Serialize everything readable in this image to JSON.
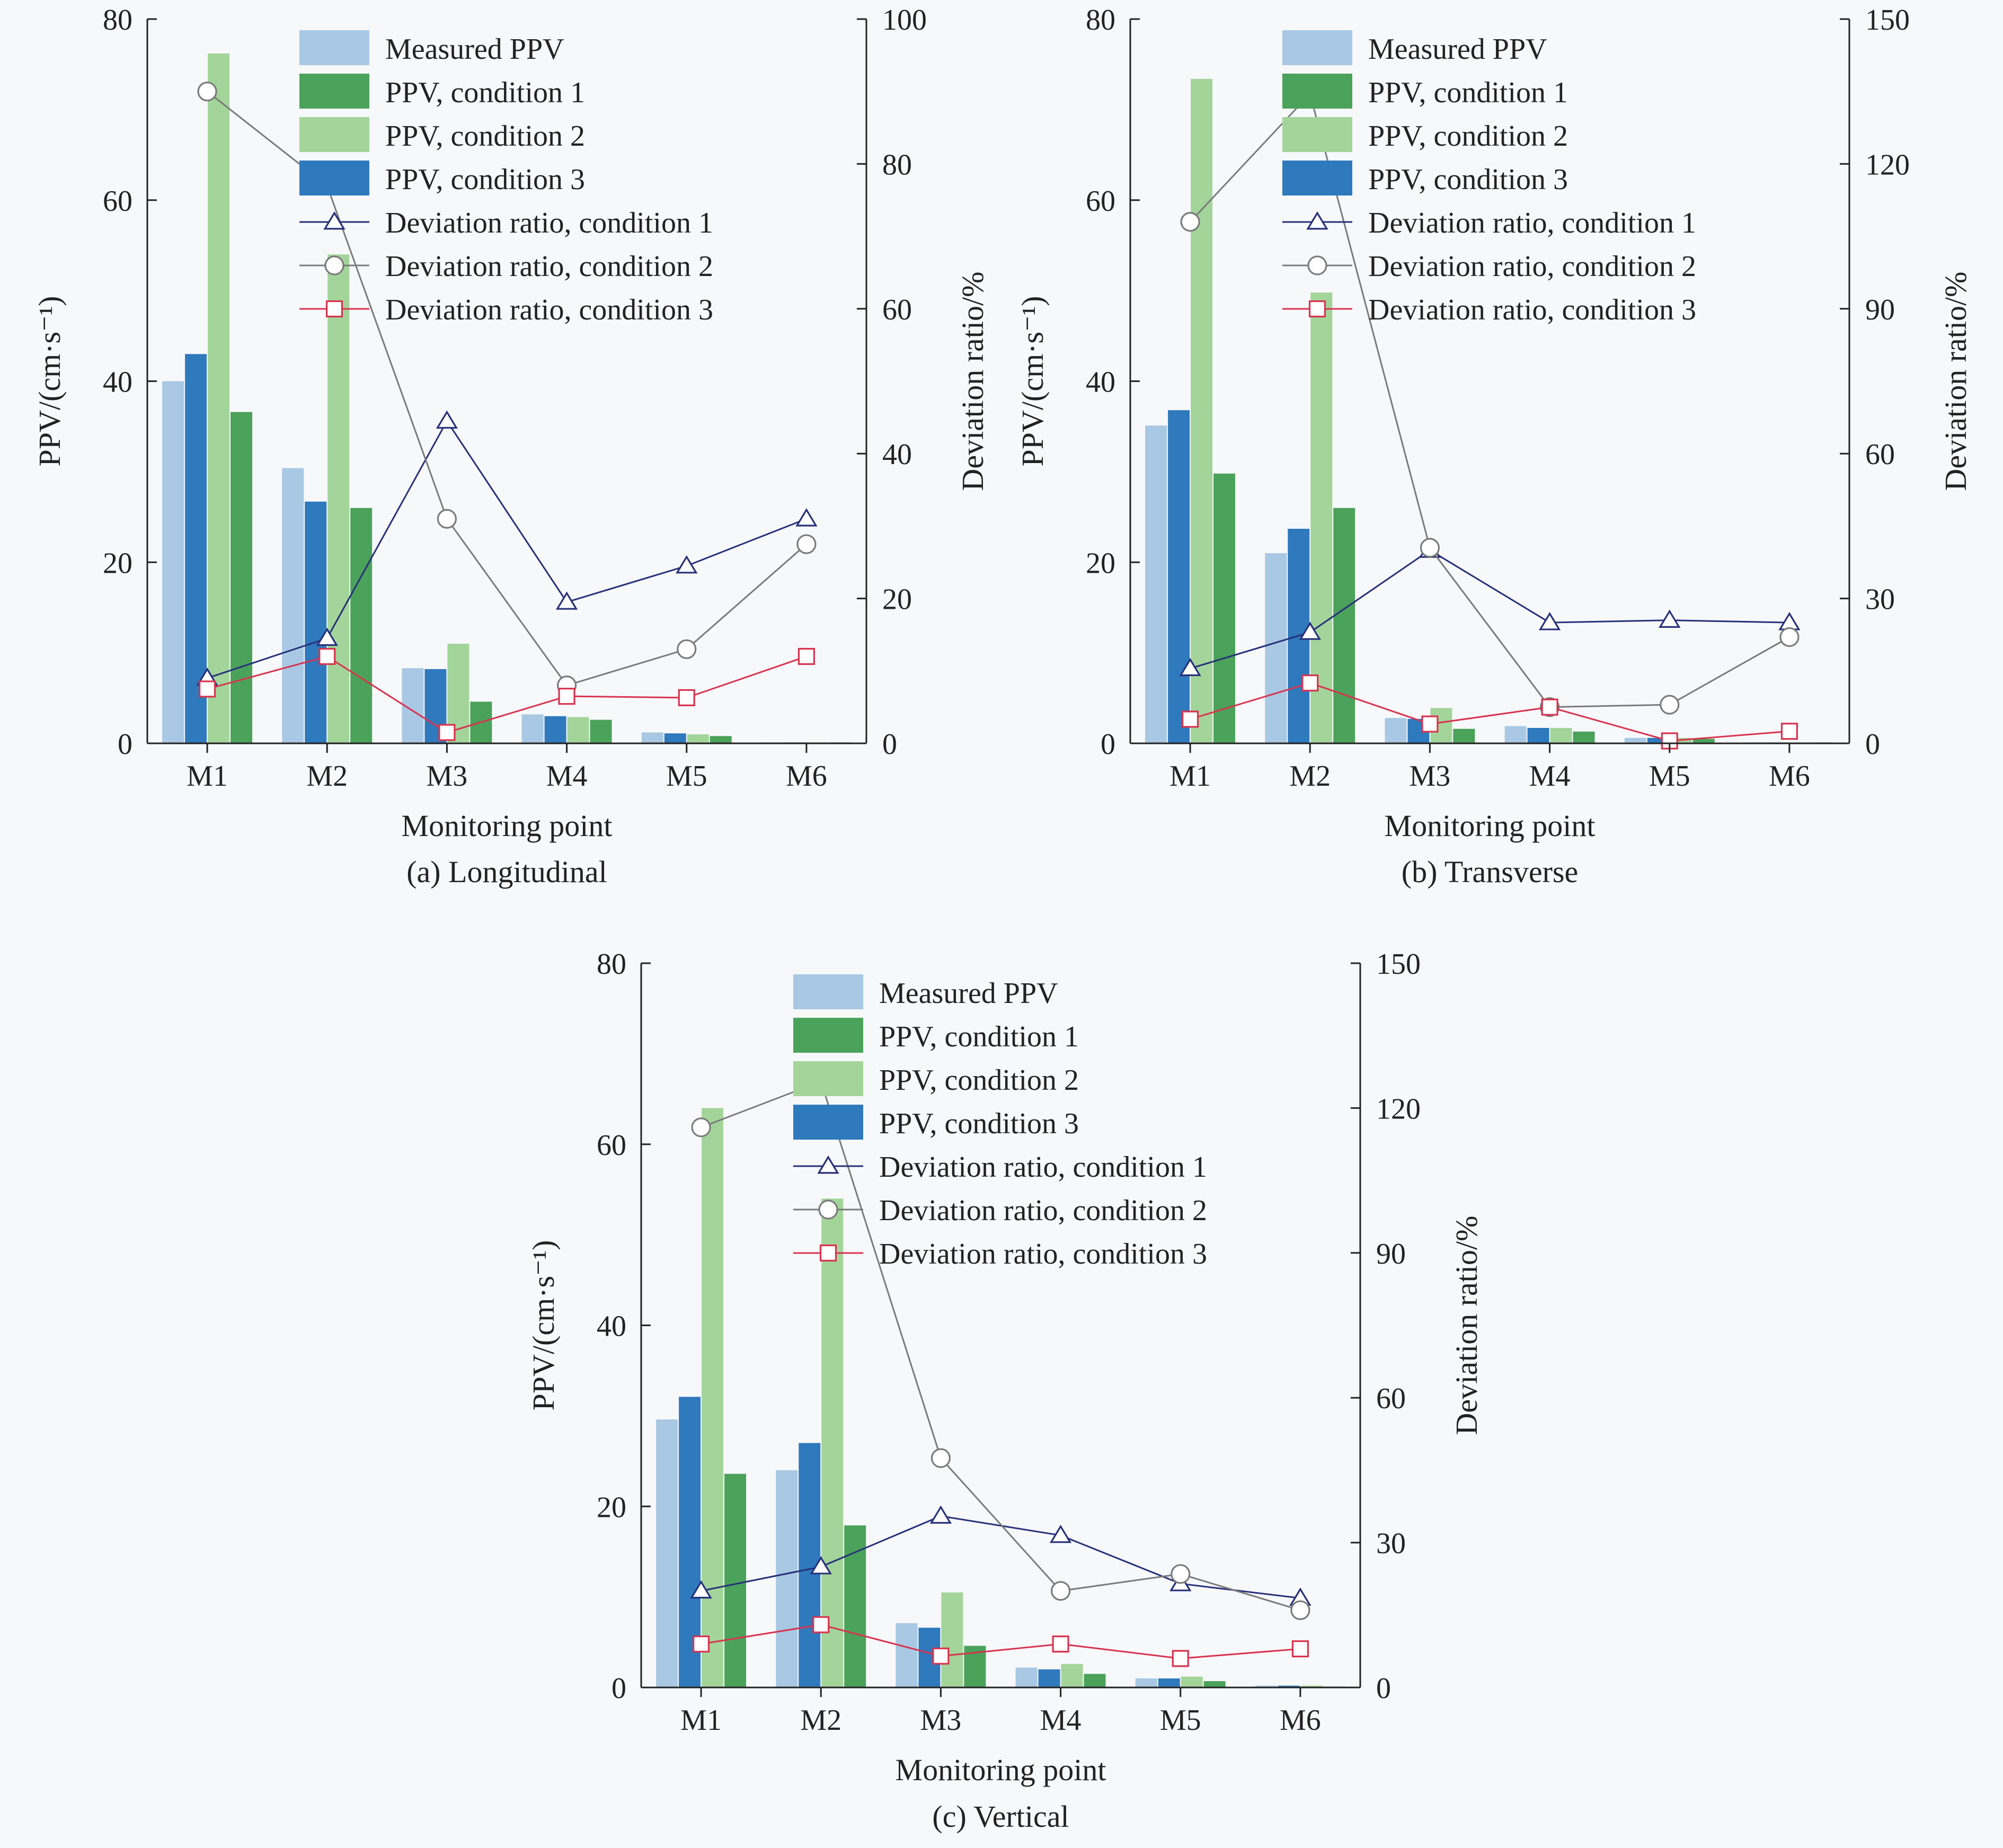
{
  "figure": {
    "colors": {
      "measured": "#a8c8e4",
      "cond1_bar": "#4ba25a",
      "cond2_bar": "#a3d49a",
      "cond3_bar": "#2f79bd",
      "dev1": "#27307a",
      "dev2": "#7a7a7a",
      "dev3": "#d8334f",
      "dev2_marker": "#8e4e8e",
      "axis": "#222222"
    }
  },
  "chart_data": [
    {
      "type": "bar+line",
      "panel_label": "(a) Longitudinal",
      "xlabel": "Monitoring point",
      "ylabel": "PPV/(cm·s⁻¹)",
      "y2label": "Deviation ratio/%",
      "categories": [
        "M1",
        "M2",
        "M3",
        "M4",
        "M5",
        "M6"
      ],
      "ylim": [
        0,
        80
      ],
      "yticks": [
        0,
        20,
        40,
        60,
        80
      ],
      "y2lim": [
        0,
        100
      ],
      "y2ticks": [
        0,
        20,
        40,
        60,
        80,
        100
      ],
      "grid": false,
      "legend_placement": "top-right",
      "bar_series": [
        {
          "name": "Measured PPV",
          "color_key": "measured",
          "values": [
            40.0,
            30.4,
            8.3,
            3.2,
            1.2,
            0.1
          ]
        },
        {
          "name": "PPV, condition 3",
          "color_key": "cond3_bar",
          "values": [
            43.0,
            26.7,
            8.2,
            3.0,
            1.1,
            0.1
          ]
        },
        {
          "name": "PPV, condition 2",
          "color_key": "cond2_bar",
          "values": [
            76.2,
            54.0,
            11.0,
            2.9,
            1.0,
            0.1
          ]
        },
        {
          "name": "PPV, condition 1",
          "color_key": "cond1_bar",
          "values": [
            36.6,
            26.0,
            4.6,
            2.6,
            0.8,
            0.1
          ]
        }
      ],
      "line_series": [
        {
          "name": "Deviation ratio, condition 1",
          "color_key": "dev1",
          "marker": "triangle",
          "values": [
            9.0,
            14.5,
            44.5,
            19.5,
            24.5,
            31.0
          ]
        },
        {
          "name": "Deviation ratio, condition 2",
          "color_key": "dev2",
          "marker": "circle",
          "values": [
            90.0,
            77.0,
            31.0,
            8.0,
            13.0,
            27.5
          ]
        },
        {
          "name": "Deviation ratio, condition 3",
          "color_key": "dev3",
          "marker": "square",
          "values": [
            7.5,
            12.0,
            1.5,
            6.5,
            6.3,
            12.0
          ]
        }
      ],
      "legend_order": [
        "Measured PPV",
        "PPV, condition 1",
        "PPV, condition 2",
        "PPV, condition 3",
        "Deviation ratio, condition 1",
        "Deviation ratio, condition 2",
        "Deviation ratio, condition 3"
      ]
    },
    {
      "type": "bar+line",
      "panel_label": "(b) Transverse",
      "xlabel": "Monitoring point",
      "ylabel": "PPV/(cm·s⁻¹)",
      "y2label": "Deviation ratio/%",
      "categories": [
        "M1",
        "M2",
        "M3",
        "M4",
        "M5",
        "M6"
      ],
      "ylim": [
        0,
        80
      ],
      "yticks": [
        0,
        20,
        40,
        60,
        80
      ],
      "y2lim": [
        0,
        150
      ],
      "y2ticks": [
        0,
        30,
        60,
        90,
        120,
        150
      ],
      "grid": false,
      "legend_placement": "top-right",
      "bar_series": [
        {
          "name": "Measured PPV",
          "color_key": "measured",
          "values": [
            35.1,
            21.0,
            2.8,
            1.9,
            0.6,
            0.1
          ]
        },
        {
          "name": "PPV, condition 3",
          "color_key": "cond3_bar",
          "values": [
            36.8,
            23.7,
            2.7,
            1.7,
            0.6,
            0.1
          ]
        },
        {
          "name": "PPV, condition 2",
          "color_key": "cond2_bar",
          "values": [
            73.4,
            49.8,
            3.9,
            1.7,
            0.6,
            0.1
          ]
        },
        {
          "name": "PPV, condition 1",
          "color_key": "cond1_bar",
          "values": [
            29.8,
            26.0,
            1.6,
            1.3,
            0.5,
            0.1
          ]
        }
      ],
      "line_series": [
        {
          "name": "Deviation ratio, condition 1",
          "color_key": "dev1",
          "marker": "triangle",
          "values": [
            15.5,
            23.0,
            40.0,
            25.0,
            25.5,
            25.0
          ]
        },
        {
          "name": "Deviation ratio, condition 2",
          "color_key": "dev2",
          "marker": "circle",
          "values": [
            108.0,
            134.5,
            40.5,
            7.5,
            8.0,
            22.0
          ]
        },
        {
          "name": "Deviation ratio, condition 3",
          "color_key": "dev3",
          "marker": "square",
          "values": [
            5.0,
            12.5,
            4.0,
            7.5,
            0.5,
            2.5
          ]
        }
      ],
      "legend_order": [
        "Measured PPV",
        "PPV, condition 1",
        "PPV, condition 2",
        "PPV, condition 3",
        "Deviation ratio, condition 1",
        "Deviation ratio, condition 2",
        "Deviation ratio, condition 3"
      ]
    },
    {
      "type": "bar+line",
      "panel_label": "(c) Vertical",
      "xlabel": "Monitoring point",
      "ylabel": "PPV/(cm·s⁻¹)",
      "y2label": "Deviation ratio/%",
      "categories": [
        "M1",
        "M2",
        "M3",
        "M4",
        "M5",
        "M6"
      ],
      "ylim": [
        0,
        80
      ],
      "yticks": [
        0,
        20,
        40,
        60,
        80
      ],
      "y2lim": [
        0,
        150
      ],
      "y2ticks": [
        0,
        30,
        60,
        90,
        120,
        150
      ],
      "grid": false,
      "legend_placement": "top-right",
      "bar_series": [
        {
          "name": "Measured PPV",
          "color_key": "measured",
          "values": [
            29.6,
            24.0,
            7.1,
            2.2,
            1.0,
            0.2
          ]
        },
        {
          "name": "PPV, condition 3",
          "color_key": "cond3_bar",
          "values": [
            32.1,
            27.0,
            6.6,
            2.0,
            1.0,
            0.2
          ]
        },
        {
          "name": "PPV, condition 2",
          "color_key": "cond2_bar",
          "values": [
            64.0,
            54.0,
            10.5,
            2.6,
            1.2,
            0.2
          ]
        },
        {
          "name": "PPV, condition 1",
          "color_key": "cond1_bar",
          "values": [
            23.6,
            17.9,
            4.6,
            1.5,
            0.7,
            0.1
          ]
        }
      ],
      "line_series": [
        {
          "name": "Deviation ratio, condition 1",
          "color_key": "dev1",
          "marker": "triangle",
          "values": [
            20.0,
            25.0,
            35.5,
            31.5,
            21.5,
            18.5
          ]
        },
        {
          "name": "Deviation ratio, condition 2",
          "color_key": "dev2",
          "marker": "circle",
          "values": [
            116.0,
            125.5,
            47.5,
            20.0,
            23.5,
            16.0
          ]
        },
        {
          "name": "Deviation ratio, condition 3",
          "color_key": "dev3",
          "marker": "square",
          "values": [
            9.0,
            13.0,
            6.5,
            9.0,
            6.0,
            8.0
          ]
        }
      ],
      "legend_order": [
        "Measured PPV",
        "PPV, condition 1",
        "PPV, condition 2",
        "PPV, condition 3",
        "Deviation ratio, condition 1",
        "Deviation ratio, condition 2",
        "Deviation ratio, condition 3"
      ]
    }
  ]
}
